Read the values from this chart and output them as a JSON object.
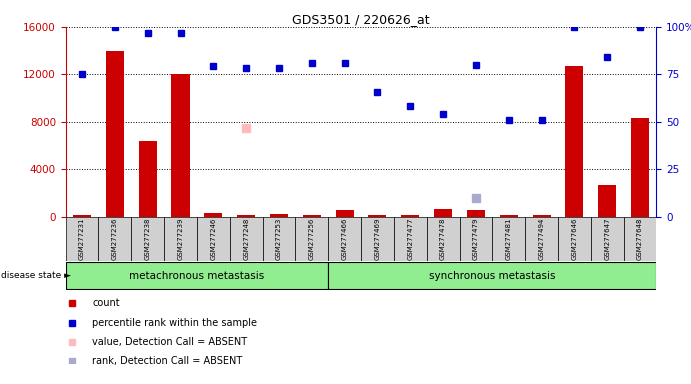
{
  "title": "GDS3501 / 220626_at",
  "samples": [
    "GSM277231",
    "GSM277236",
    "GSM277238",
    "GSM277239",
    "GSM277246",
    "GSM277248",
    "GSM277253",
    "GSM277256",
    "GSM277466",
    "GSM277469",
    "GSM277477",
    "GSM277478",
    "GSM277479",
    "GSM277481",
    "GSM277494",
    "GSM277646",
    "GSM277647",
    "GSM277648"
  ],
  "counts": [
    200,
    14000,
    6400,
    12000,
    350,
    200,
    250,
    200,
    580,
    200,
    150,
    650,
    600,
    150,
    200,
    12700,
    2700,
    8300
  ],
  "percentile_ranks_scaled": [
    12000,
    16000,
    15500,
    15500,
    12700,
    12500,
    12500,
    13000,
    13000,
    10500,
    9300,
    8700,
    12800,
    8200,
    8200,
    16000,
    13500,
    16000
  ],
  "absent_value": [
    null,
    null,
    null,
    null,
    null,
    7500,
    null,
    null,
    null,
    null,
    null,
    null,
    null,
    null,
    null,
    null,
    null,
    null
  ],
  "absent_rank": [
    null,
    null,
    null,
    null,
    null,
    null,
    null,
    null,
    null,
    null,
    null,
    null,
    1600,
    null,
    null,
    null,
    null,
    null
  ],
  "group1_count": 8,
  "group2_count": 10,
  "group1_label": "metachronous metastasis",
  "group2_label": "synchronous metastasis",
  "disease_state_label": "disease state",
  "ylim": [
    0,
    16000
  ],
  "yticks": [
    0,
    4000,
    8000,
    12000,
    16000
  ],
  "yticks_right": [
    0,
    25,
    50,
    75,
    100
  ],
  "bar_color": "#cc0000",
  "dot_color": "#0000cc",
  "absent_value_color": "#ffbbbb",
  "absent_rank_color": "#aaaacc",
  "legend_items": [
    "count",
    "percentile rank within the sample",
    "value, Detection Call = ABSENT",
    "rank, Detection Call = ABSENT"
  ]
}
